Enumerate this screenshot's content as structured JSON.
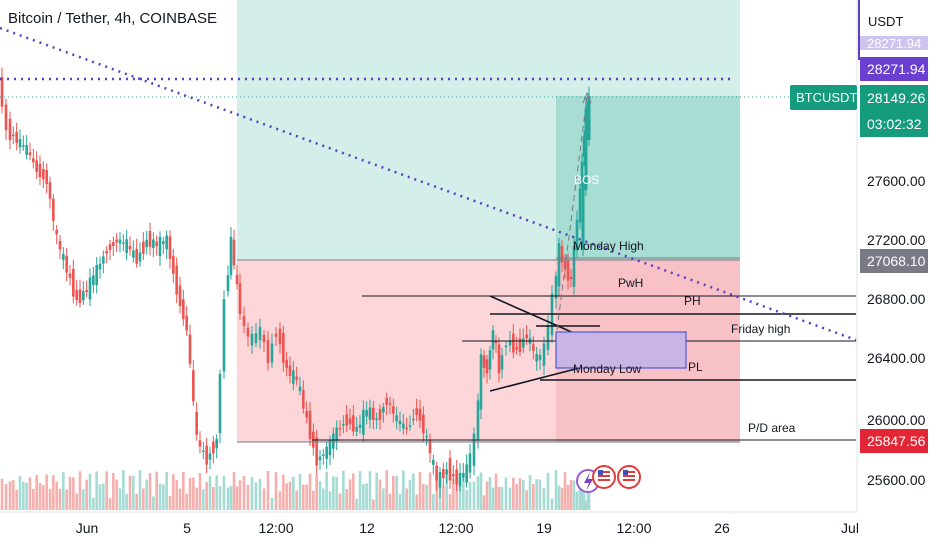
{
  "header": {
    "title": "Bitcoin / Tether, 4h, COINBASE"
  },
  "axis": {
    "currency": "USDT",
    "y_ticks": [
      "27600.00",
      "27200.00",
      "26800.00",
      "26400.00",
      "26000.00",
      "25600.00"
    ],
    "x_ticks": [
      "Jun",
      "5",
      "12:00",
      "12",
      "12:00",
      "19",
      "12:00",
      "26",
      "Jul"
    ]
  },
  "price_labels": {
    "ticker": "BTCUSDT",
    "last_price": "28149.26",
    "countdown": "03:02:32",
    "target_price": "28271.94",
    "target_partial": "28271.94",
    "entry_price": "27068.10",
    "stop_price": "25847.56"
  },
  "annotations": {
    "monday_high": "Monday High",
    "monday_low": "Monday Low",
    "pwh": "PwH",
    "ph": "PH",
    "friday_high": "Friday high",
    "pl": "PL",
    "pd_area": "P/D area",
    "bos": "BOS"
  },
  "colors": {
    "bull": "#26a69a",
    "bear": "#ef5350",
    "profit_zone": "#cfece6",
    "loss_zone": "#fbd3d6",
    "trend_line": "#5b3fc4",
    "target_badge": "#6a3fd1"
  },
  "chart_data": {
    "type": "candlestick",
    "title": "Bitcoin / Tether, 4h, COINBASE",
    "y_unit": "USDT",
    "ylim": [
      25450,
      28600
    ],
    "x_ticks": [
      "Jun",
      "5",
      "12:00",
      "12",
      "12:00",
      "19",
      "12:00",
      "26",
      "Jul"
    ],
    "levels": {
      "target": 28271.94,
      "last": 28149.26,
      "entry": 27068.1,
      "stop": 25847.56
    }
  }
}
